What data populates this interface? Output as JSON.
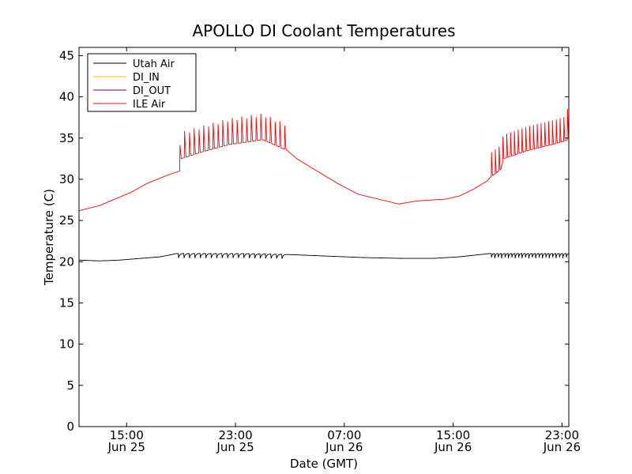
{
  "chart_data": {
    "type": "line",
    "title": "APOLLO DI Coolant Temperatures",
    "xlabel": "Date (GMT)",
    "ylabel": "Temperature (C)",
    "x_unit": "hours since 2012-06-25 11:30 GMT",
    "xlim": [
      0,
      36
    ],
    "ylim": [
      0,
      46
    ],
    "yticks": [
      0,
      5,
      10,
      15,
      20,
      25,
      30,
      35,
      40,
      45
    ],
    "xticks": [
      {
        "x": 3.5,
        "time": "15:00",
        "date": "Jun 25"
      },
      {
        "x": 11.5,
        "time": "23:00",
        "date": "Jun 25"
      },
      {
        "x": 19.5,
        "time": "07:00",
        "date": "Jun 26"
      },
      {
        "x": 27.5,
        "time": "15:00",
        "date": "Jun 26"
      },
      {
        "x": 35.5,
        "time": "23:00",
        "date": "Jun 26"
      }
    ],
    "grid": false,
    "legend_position": "top-left",
    "series": [
      {
        "name": "Utah Air",
        "color": "#000000",
        "baseline": [
          [
            0,
            20.2
          ],
          [
            1.5,
            20.1
          ],
          [
            3,
            20.2
          ],
          [
            4.5,
            20.4
          ],
          [
            6,
            20.6
          ],
          [
            7.2,
            21.0
          ],
          [
            12,
            21.0
          ],
          [
            15,
            20.9
          ],
          [
            18,
            20.7
          ],
          [
            21,
            20.5
          ],
          [
            24,
            20.4
          ],
          [
            26,
            20.4
          ],
          [
            28,
            20.6
          ],
          [
            30.2,
            21.0
          ],
          [
            36,
            21.0
          ]
        ],
        "spike_windows": [
          {
            "start": 7.3,
            "end": 15.3,
            "period": 0.4,
            "depth": 0.7
          },
          {
            "start": 30.3,
            "end": 36,
            "period": 0.25,
            "depth": 0.7
          }
        ]
      },
      {
        "name": "DI_IN",
        "color": "#ffbf00",
        "points": []
      },
      {
        "name": "DI_OUT",
        "color": "#7f007f",
        "points": []
      },
      {
        "name": "ILE Air",
        "color": "#ff0000",
        "baseline": [
          [
            0,
            26.2
          ],
          [
            1.5,
            26.8
          ],
          [
            2.5,
            27.5
          ],
          [
            3.8,
            28.4
          ],
          [
            5,
            29.5
          ],
          [
            6.5,
            30.5
          ],
          [
            7.4,
            31.0
          ],
          [
            7.5,
            32.5
          ],
          [
            9,
            33.3
          ],
          [
            11,
            34.2
          ],
          [
            13.5,
            34.8
          ],
          [
            15.3,
            33.5
          ],
          [
            16,
            32.5
          ],
          [
            18,
            30.5
          ],
          [
            19,
            29.5
          ],
          [
            20.5,
            28.2
          ],
          [
            22,
            27.6
          ],
          [
            23,
            27.2
          ],
          [
            23.5,
            27.0
          ],
          [
            24.2,
            27.2
          ],
          [
            25,
            27.4
          ],
          [
            26,
            27.5
          ],
          [
            27,
            27.6
          ],
          [
            28,
            28.0
          ],
          [
            29,
            28.8
          ],
          [
            30,
            29.8
          ],
          [
            30.2,
            30.2
          ],
          [
            31,
            31.2
          ],
          [
            31.2,
            32.5
          ],
          [
            33,
            33.5
          ],
          [
            35,
            34.3
          ],
          [
            36,
            34.8
          ]
        ],
        "spike_windows": [
          {
            "start": 7.4,
            "end": 15.3,
            "period": 0.35,
            "height": 3.5
          },
          {
            "start": 30.3,
            "end": 36,
            "period": 0.28,
            "height": 3.8
          }
        ]
      }
    ]
  }
}
